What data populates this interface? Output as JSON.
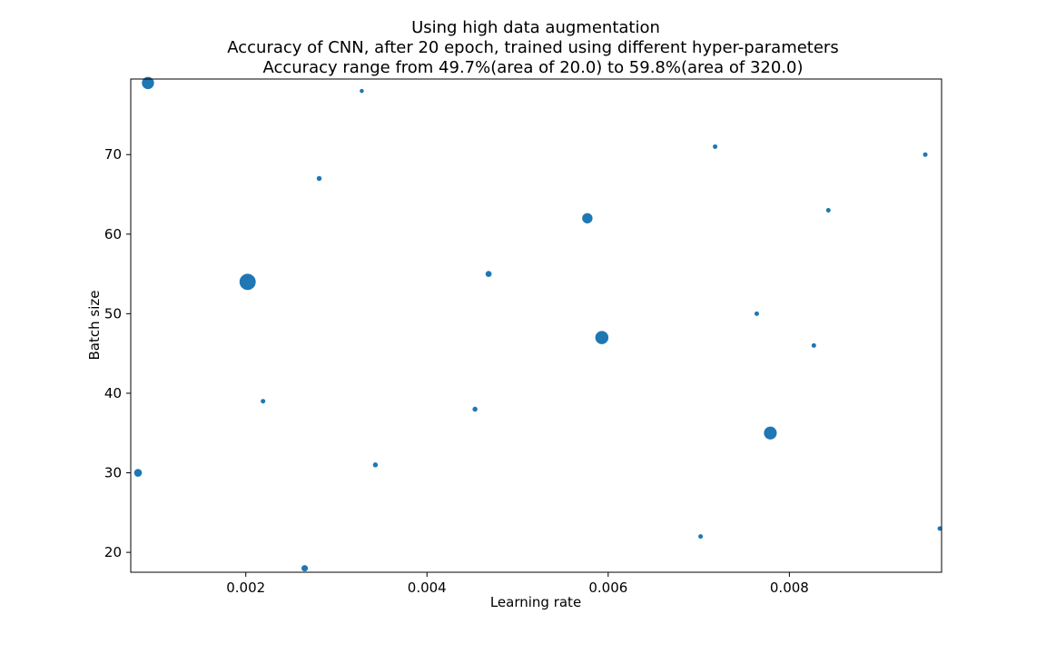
{
  "chart_data": {
    "type": "scatter",
    "title_lines": [
      "Using high data augmentation",
      "Accuracy of CNN, after 20 epoch, trained using different hyper-parameters",
      "Accuracy range from 49.7%(area of 20.0) to 59.8%(area of 320.0)"
    ],
    "xlabel": "Learning rate",
    "ylabel": "Batch size",
    "xlim": [
      0.00073,
      0.00968
    ],
    "ylim": [
      17.5,
      79.5
    ],
    "x_ticks": [
      0.002,
      0.004,
      0.006,
      0.008
    ],
    "x_tick_labels": [
      "0.002",
      "0.004",
      "0.006",
      "0.008"
    ],
    "y_ticks": [
      20,
      30,
      40,
      50,
      60,
      70
    ],
    "y_tick_labels": [
      "20",
      "30",
      "40",
      "50",
      "60",
      "70"
    ],
    "marker_color": "#1f77b4",
    "grid": false,
    "points": [
      {
        "x": 0.00092,
        "y": 79,
        "area": 180
      },
      {
        "x": 0.00328,
        "y": 78,
        "area": 20
      },
      {
        "x": 0.00718,
        "y": 71,
        "area": 25
      },
      {
        "x": 0.0095,
        "y": 70,
        "area": 25
      },
      {
        "x": 0.00281,
        "y": 67,
        "area": 30
      },
      {
        "x": 0.00843,
        "y": 63,
        "area": 25
      },
      {
        "x": 0.00577,
        "y": 62,
        "area": 130
      },
      {
        "x": 0.00468,
        "y": 55,
        "area": 45
      },
      {
        "x": 0.00202,
        "y": 54,
        "area": 320
      },
      {
        "x": 0.00764,
        "y": 50,
        "area": 25
      },
      {
        "x": 0.00593,
        "y": 47,
        "area": 210
      },
      {
        "x": 0.00827,
        "y": 46,
        "area": 25
      },
      {
        "x": 0.00219,
        "y": 39,
        "area": 25
      },
      {
        "x": 0.00453,
        "y": 38,
        "area": 30
      },
      {
        "x": 0.00779,
        "y": 35,
        "area": 200
      },
      {
        "x": 0.00343,
        "y": 31,
        "area": 30
      },
      {
        "x": 0.00081,
        "y": 30,
        "area": 75
      },
      {
        "x": 0.00966,
        "y": 23,
        "area": 25
      },
      {
        "x": 0.00702,
        "y": 22,
        "area": 25
      },
      {
        "x": 0.00265,
        "y": 18,
        "area": 50
      }
    ]
  }
}
